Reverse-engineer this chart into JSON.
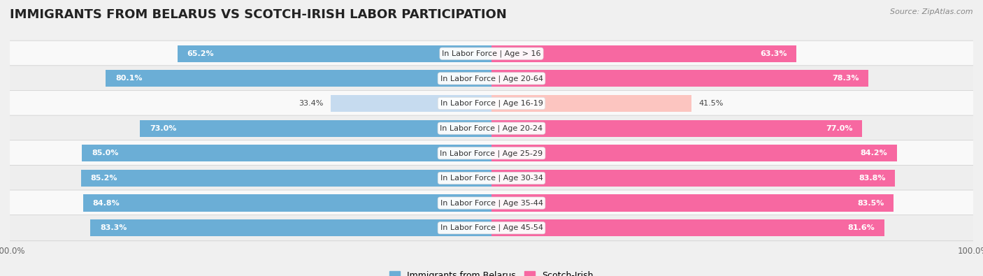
{
  "title": "IMMIGRANTS FROM BELARUS VS SCOTCH-IRISH LABOR PARTICIPATION",
  "source": "Source: ZipAtlas.com",
  "categories": [
    "In Labor Force | Age > 16",
    "In Labor Force | Age 20-64",
    "In Labor Force | Age 16-19",
    "In Labor Force | Age 20-24",
    "In Labor Force | Age 25-29",
    "In Labor Force | Age 30-34",
    "In Labor Force | Age 35-44",
    "In Labor Force | Age 45-54"
  ],
  "belarus_values": [
    65.2,
    80.1,
    33.4,
    73.0,
    85.0,
    85.2,
    84.8,
    83.3
  ],
  "scotch_values": [
    63.3,
    78.3,
    41.5,
    77.0,
    84.2,
    83.8,
    83.5,
    81.6
  ],
  "belarus_color": "#6baed6",
  "scotch_color": "#f768a1",
  "belarus_color_light": "#c6dbef",
  "scotch_color_light": "#fcc5c0",
  "bar_height": 0.68,
  "bg_color": "#f0f0f0",
  "row_bg_even": "#f8f8f8",
  "row_bg_odd": "#e8e8e8",
  "max_value": 100.0,
  "title_fontsize": 13,
  "label_fontsize": 8.0,
  "value_fontsize": 8.0,
  "legend_fontsize": 9
}
